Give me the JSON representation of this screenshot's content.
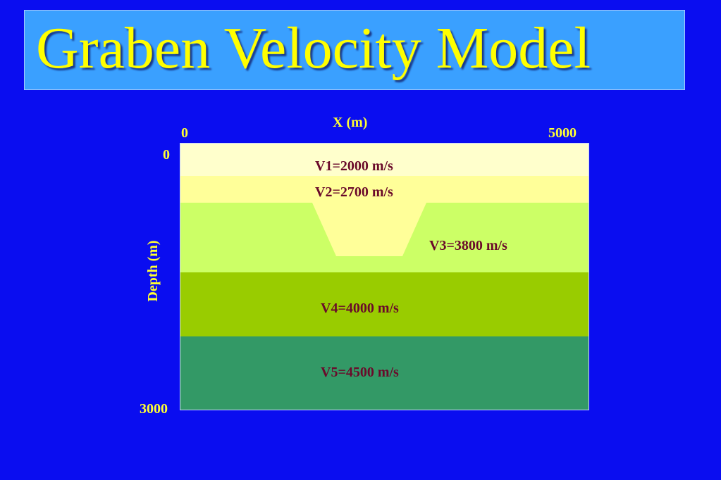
{
  "title": "Graben Velocity Model",
  "axes": {
    "x_label": "X  (m)",
    "x_ticks": [
      "0",
      "5000"
    ],
    "y_label": "Depth (m)",
    "y_ticks": [
      "0",
      "3000"
    ]
  },
  "layers": [
    {
      "id": "v1",
      "label": "V1=2000 m/s",
      "color": "#ffffcc"
    },
    {
      "id": "v2",
      "label": "V2=2700 m/s",
      "color": "#ffff99"
    },
    {
      "id": "v3",
      "label": "V3=3800 m/s",
      "color": "#ccff66"
    },
    {
      "id": "v4",
      "label": "V4=4000 m/s",
      "color": "#99cc00"
    },
    {
      "id": "v5",
      "label": "V5=4500 m/s",
      "color": "#339966"
    }
  ],
  "colors": {
    "background": "#0a0df0",
    "title_box": "#3aa0ff",
    "title_text": "#ffff00",
    "axis_text": "#ffff33",
    "layer_text": "#6a0a2a"
  }
}
